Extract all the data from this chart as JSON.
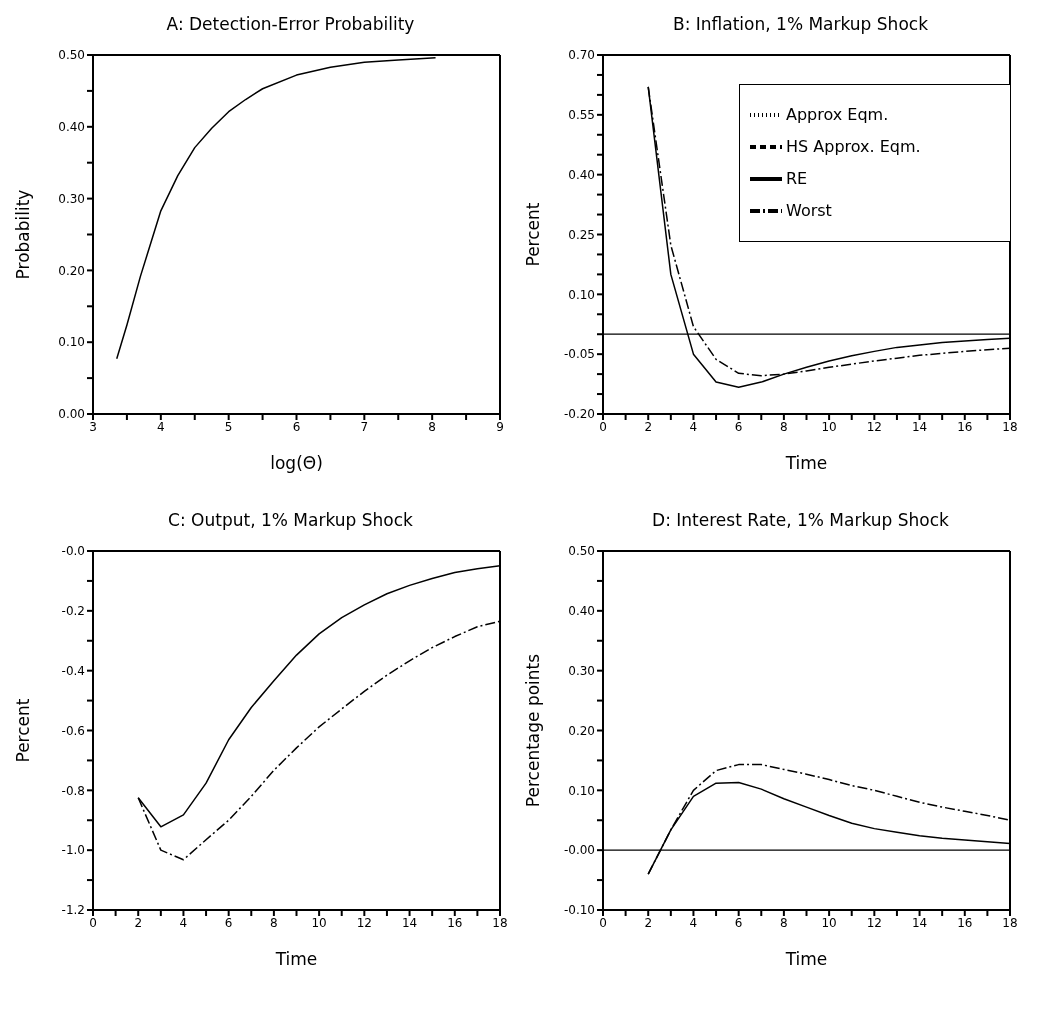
{
  "chart_data": [
    {
      "type": "line",
      "title": "A: Detection-Error Probability",
      "xlabel": "log(Θ)",
      "ylabel": "Probability",
      "xlim": [
        3,
        9
      ],
      "xticks": [
        3,
        {
          "value": 3.5,
          "label": null
        },
        4,
        {
          "value": 4.5,
          "label": null
        },
        5,
        {
          "value": 5.5,
          "label": null
        },
        6,
        {
          "value": 6.5,
          "label": null
        },
        7,
        {
          "value": 7.5,
          "label": null
        },
        8,
        {
          "value": 8.5,
          "label": null
        },
        9
      ],
      "ylim": [
        0,
        0.5
      ],
      "yticks": [
        {
          "value": 0,
          "label": "0.00"
        },
        {
          "value": 0.05,
          "label": null
        },
        {
          "value": 0.1,
          "label": "0.10"
        },
        {
          "value": 0.15,
          "label": null
        },
        {
          "value": 0.2,
          "label": "0.20"
        },
        {
          "value": 0.25,
          "label": null
        },
        {
          "value": 0.3,
          "label": "0.30"
        },
        {
          "value": 0.35,
          "label": null
        },
        {
          "value": 0.4,
          "label": "0.40"
        },
        {
          "value": 0.45,
          "label": null
        },
        {
          "value": 0.5,
          "label": "0.50"
        }
      ],
      "x": [
        3.35,
        3.5,
        3.7,
        4.0,
        4.25,
        4.5,
        4.75,
        5.0,
        5.25,
        5.5,
        6.0,
        6.5,
        7.0,
        7.5,
        8.05
      ],
      "series": [
        {
          "color": "#000000",
          "line_style": "solid",
          "values": [
            0.077,
            0.124,
            0.192,
            0.283,
            0.332,
            0.371,
            0.398,
            0.421,
            0.438,
            0.453,
            0.472,
            0.483,
            0.49,
            0.493,
            0.496
          ]
        }
      ],
      "grid": false,
      "legend": false
    },
    {
      "type": "line",
      "title": "B: Inflation, 1% Markup Shock",
      "xlabel": "Time",
      "ylabel": "Percent",
      "xlim": [
        0,
        18
      ],
      "xticks": [
        0,
        {
          "value": 1,
          "label": null
        },
        2,
        {
          "value": 3,
          "label": null
        },
        4,
        {
          "value": 5,
          "label": null
        },
        6,
        {
          "value": 7,
          "label": null
        },
        8,
        {
          "value": 9,
          "label": null
        },
        10,
        {
          "value": 11,
          "label": null
        },
        12,
        {
          "value": 13,
          "label": null
        },
        14,
        {
          "value": 15,
          "label": null
        },
        16,
        {
          "value": 17,
          "label": null
        },
        18
      ],
      "ylim": [
        -0.2,
        0.7
      ],
      "yticks": [
        {
          "value": -0.2,
          "label": "-0.20"
        },
        {
          "value": -0.15,
          "label": null
        },
        {
          "value": -0.1,
          "label": null
        },
        {
          "value": -0.05,
          "label": "-0.05"
        },
        {
          "value": 0,
          "label": null
        },
        {
          "value": 0.05,
          "label": null
        },
        {
          "value": 0.1,
          "label": "0.10"
        },
        {
          "value": 0.15,
          "label": null
        },
        {
          "value": 0.2,
          "label": null
        },
        {
          "value": 0.25,
          "label": "0.25"
        },
        {
          "value": 0.3,
          "label": null
        },
        {
          "value": 0.35,
          "label": null
        },
        {
          "value": 0.4,
          "label": "0.40"
        },
        {
          "value": 0.45,
          "label": null
        },
        {
          "value": 0.5,
          "label": null
        },
        {
          "value": 0.55,
          "label": "0.55"
        },
        {
          "value": 0.6,
          "label": null
        },
        {
          "value": 0.65,
          "label": null
        },
        {
          "value": 0.7,
          "label": "0.70"
        }
      ],
      "x": [
        2,
        3,
        4,
        5,
        6,
        7,
        8,
        9,
        10,
        11,
        12,
        13,
        14,
        15,
        16,
        17,
        18
      ],
      "series": [
        {
          "name": "RE",
          "color": "#000000",
          "line_style": "solid",
          "values": [
            0.62,
            0.15,
            -0.05,
            -0.12,
            -0.133,
            -0.12,
            -0.1,
            -0.083,
            -0.067,
            -0.054,
            -0.043,
            -0.033,
            -0.027,
            -0.021,
            -0.017,
            -0.013,
            -0.01
          ]
        },
        {
          "name": "Worst",
          "color": "#000000",
          "line_style": "dashdot",
          "values": [
            0.62,
            0.223,
            0.019,
            -0.063,
            -0.098,
            -0.104,
            -0.1,
            -0.092,
            -0.083,
            -0.075,
            -0.067,
            -0.06,
            -0.053,
            -0.048,
            -0.043,
            -0.039,
            -0.035
          ]
        },
        {
          "name": "HS Approx. Eqm.",
          "color": "#000000",
          "line_style": "dashed",
          "values": [
            null,
            null,
            null,
            null,
            null,
            null,
            null,
            null,
            null,
            null,
            null,
            null,
            null,
            null,
            null,
            null,
            null
          ]
        },
        {
          "name": "Approx Eqm.",
          "color": "#000000",
          "line_style": "dotted",
          "values": [
            null,
            null,
            null,
            null,
            null,
            null,
            null,
            null,
            null,
            null,
            null,
            null,
            null,
            null,
            null,
            null,
            null
          ]
        }
      ],
      "ref_lines": [
        {
          "axis": "y",
          "value": 0,
          "color": "#000000"
        }
      ],
      "grid": false,
      "legend": "top right"
    },
    {
      "type": "line",
      "title": "C: Output, 1% Markup Shock",
      "xlabel": "Time",
      "ylabel": "Percent",
      "xlim": [
        0,
        18
      ],
      "xticks": [
        0,
        {
          "value": 1,
          "label": null
        },
        2,
        {
          "value": 3,
          "label": null
        },
        4,
        {
          "value": 5,
          "label": null
        },
        6,
        {
          "value": 7,
          "label": null
        },
        8,
        {
          "value": 9,
          "label": null
        },
        10,
        {
          "value": 11,
          "label": null
        },
        12,
        {
          "value": 13,
          "label": null
        },
        14,
        {
          "value": 15,
          "label": null
        },
        16,
        {
          "value": 17,
          "label": null
        },
        18
      ],
      "ylim": [
        -1.2,
        0
      ],
      "yticks": [
        {
          "value": -1.2,
          "label": "-1.2"
        },
        {
          "value": -1.1,
          "label": null
        },
        {
          "value": -1.0,
          "label": "-1.0"
        },
        {
          "value": -0.9,
          "label": null
        },
        {
          "value": -0.8,
          "label": "-0.8"
        },
        {
          "value": -0.7,
          "label": null
        },
        {
          "value": -0.6,
          "label": "-0.6"
        },
        {
          "value": -0.5,
          "label": null
        },
        {
          "value": -0.4,
          "label": "-0.4"
        },
        {
          "value": -0.3,
          "label": null
        },
        {
          "value": -0.2,
          "label": "-0.2"
        },
        {
          "value": -0.1,
          "label": null
        },
        {
          "value": 0,
          "label": "-0.0"
        }
      ],
      "x": [
        2,
        3,
        4,
        5,
        6,
        7,
        8,
        9,
        10,
        11,
        12,
        13,
        14,
        15,
        16,
        17,
        18
      ],
      "series": [
        {
          "color": "#000000",
          "line_style": "solid",
          "values": [
            -0.825,
            -0.922,
            -0.882,
            -0.776,
            -0.631,
            -0.523,
            -0.434,
            -0.348,
            -0.277,
            -0.223,
            -0.18,
            -0.143,
            -0.115,
            -0.092,
            -0.072,
            -0.059,
            -0.049
          ]
        },
        {
          "color": "#000000",
          "line_style": "dashdot",
          "values": [
            -0.825,
            -1.0,
            -1.032,
            -0.965,
            -0.9,
            -0.82,
            -0.733,
            -0.658,
            -0.588,
            -0.528,
            -0.469,
            -0.415,
            -0.367,
            -0.323,
            -0.286,
            -0.253,
            -0.235
          ]
        }
      ],
      "grid": false,
      "legend": false
    },
    {
      "type": "line",
      "title": "D: Interest Rate, 1% Markup Shock",
      "xlabel": "Time",
      "ylabel": "Percentage points",
      "xlim": [
        0,
        18
      ],
      "xticks": [
        0,
        {
          "value": 1,
          "label": null
        },
        2,
        {
          "value": 3,
          "label": null
        },
        4,
        {
          "value": 5,
          "label": null
        },
        6,
        {
          "value": 7,
          "label": null
        },
        8,
        {
          "value": 9,
          "label": null
        },
        10,
        {
          "value": 11,
          "label": null
        },
        12,
        {
          "value": 13,
          "label": null
        },
        14,
        {
          "value": 15,
          "label": null
        },
        16,
        {
          "value": 17,
          "label": null
        },
        18
      ],
      "ylim": [
        -0.1,
        0.5
      ],
      "yticks": [
        {
          "value": -0.1,
          "label": "-0.10"
        },
        {
          "value": -0.05,
          "label": null
        },
        {
          "value": 0,
          "label": "-0.00"
        },
        {
          "value": 0.05,
          "label": null
        },
        {
          "value": 0.1,
          "label": "0.10"
        },
        {
          "value": 0.15,
          "label": null
        },
        {
          "value": 0.2,
          "label": "0.20"
        },
        {
          "value": 0.25,
          "label": null
        },
        {
          "value": 0.3,
          "label": "0.30"
        },
        {
          "value": 0.35,
          "label": null
        },
        {
          "value": 0.4,
          "label": "0.40"
        },
        {
          "value": 0.45,
          "label": null
        },
        {
          "value": 0.5,
          "label": "0.50"
        }
      ],
      "x": [
        2,
        3,
        4,
        5,
        6,
        7,
        8,
        9,
        10,
        11,
        12,
        13,
        14,
        15,
        16,
        17,
        18
      ],
      "series": [
        {
          "color": "#000000",
          "line_style": "solid",
          "values": [
            -0.04,
            0.034,
            0.09,
            0.112,
            0.113,
            0.102,
            0.086,
            0.072,
            0.058,
            0.045,
            0.036,
            0.03,
            0.024,
            0.02,
            0.017,
            0.014,
            0.011
          ]
        },
        {
          "color": "#000000",
          "line_style": "dashdot",
          "values": [
            -0.04,
            0.034,
            0.1,
            0.133,
            0.143,
            0.143,
            0.135,
            0.127,
            0.118,
            0.108,
            0.1,
            0.09,
            0.08,
            0.072,
            0.065,
            0.058,
            0.05
          ]
        }
      ],
      "ref_lines": [
        {
          "axis": "y",
          "value": 0,
          "color": "#000000"
        }
      ],
      "grid": false,
      "legend": false
    }
  ]
}
